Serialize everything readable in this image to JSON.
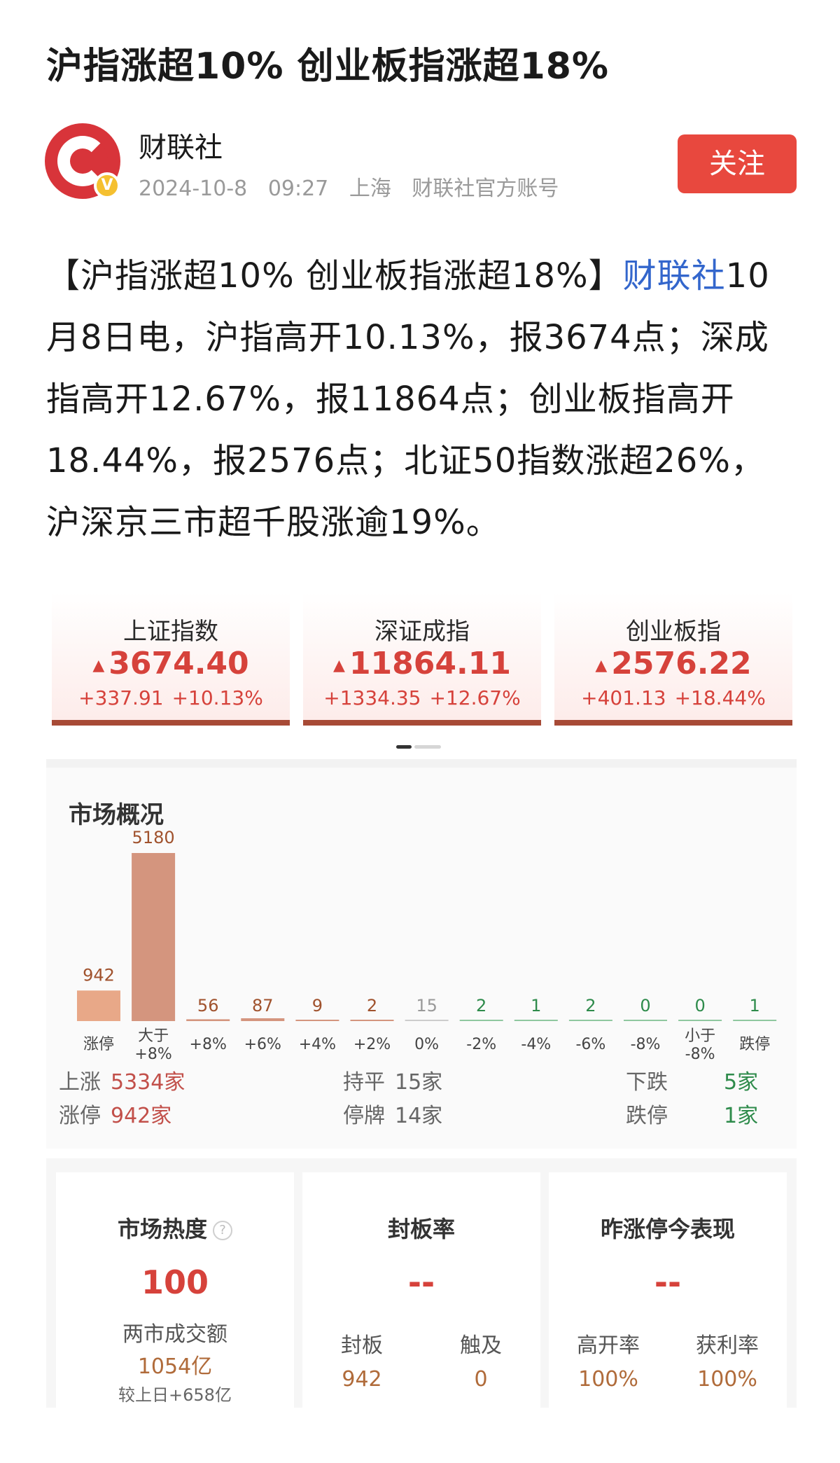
{
  "article": {
    "title": "沪指涨超10% 创业板指涨超18%",
    "author": "财联社",
    "date": "2024-10-8",
    "time": "09:27",
    "location": "上海",
    "account_type": "财联社官方账号",
    "follow_label": "关注",
    "avatar_letter": "C",
    "verified_badge": "V",
    "body_headline": "【沪指涨超10% 创业板指涨超18%】",
    "body_source": "财联社",
    "body_text": "10月8日电，沪指高开10.13%，报3674点；深成指高开12.67%，报11864点；创业板指高开18.44%，报2576点；北证50指数涨超26%，沪深京三市超千股涨逾19%。"
  },
  "index_cards": [
    {
      "name": "上证指数",
      "value": "3674.40",
      "change": "+337.91",
      "pct": "+10.13%"
    },
    {
      "name": "深证成指",
      "value": "11864.11",
      "change": "+1334.35",
      "pct": "+12.67%"
    },
    {
      "name": "创业板指",
      "value": "2576.22",
      "change": "+401.13",
      "pct": "+18.44%"
    }
  ],
  "market_overview": {
    "title": "市场概况",
    "summary": {
      "up_label": "上涨",
      "up_value": "5334家",
      "limit_up_label": "涨停",
      "limit_up_value": "942家",
      "flat_label": "持平",
      "flat_value": "15家",
      "suspended_label": "停牌",
      "suspended_value": "14家",
      "down_label": "下跌",
      "down_value": "5家",
      "limit_down_label": "跌停",
      "limit_down_value": "1家"
    }
  },
  "chart_data": {
    "type": "bar",
    "categories": [
      "涨停",
      "大于\n+8%",
      "+8%",
      "+6%",
      "+4%",
      "+2%",
      "0%",
      "-2%",
      "-4%",
      "-6%",
      "-8%",
      "小于\n-8%",
      "跌停"
    ],
    "values": [
      942,
      5180,
      56,
      87,
      9,
      2,
      15,
      2,
      1,
      2,
      0,
      0,
      1
    ],
    "colors": [
      "#e8a888",
      "#d4957e",
      "#d4957e",
      "#d4957e",
      "#d4957e",
      "#d4957e",
      "#cccccc",
      "#8fc79f",
      "#8fc79f",
      "#8fc79f",
      "#8fc79f",
      "#8fc79f",
      "#8fc79f"
    ],
    "label_colors": [
      "#a0522d",
      "#a0522d",
      "#a0522d",
      "#a0522d",
      "#a0522d",
      "#a0522d",
      "#999999",
      "#2e8b4b",
      "#2e8b4b",
      "#2e8b4b",
      "#2e8b4b",
      "#2e8b4b",
      "#2e8b4b"
    ],
    "ylim": [
      0,
      5180
    ]
  },
  "bottom_cards": {
    "heat": {
      "title": "市场热度",
      "help_icon": "?",
      "value": "100",
      "turnover_label": "两市成交额",
      "turnover_value": "1054亿",
      "compare": "较上日+658亿"
    },
    "seal": {
      "title": "封板率",
      "value": "--",
      "sealed_label": "封板",
      "sealed_value": "942",
      "touched_label": "触及",
      "touched_value": "0"
    },
    "yesterday": {
      "title": "昨涨停今表现",
      "value": "--",
      "high_open_label": "高开率",
      "high_open_value": "100%",
      "profit_label": "获利率",
      "profit_value": "100%"
    }
  }
}
